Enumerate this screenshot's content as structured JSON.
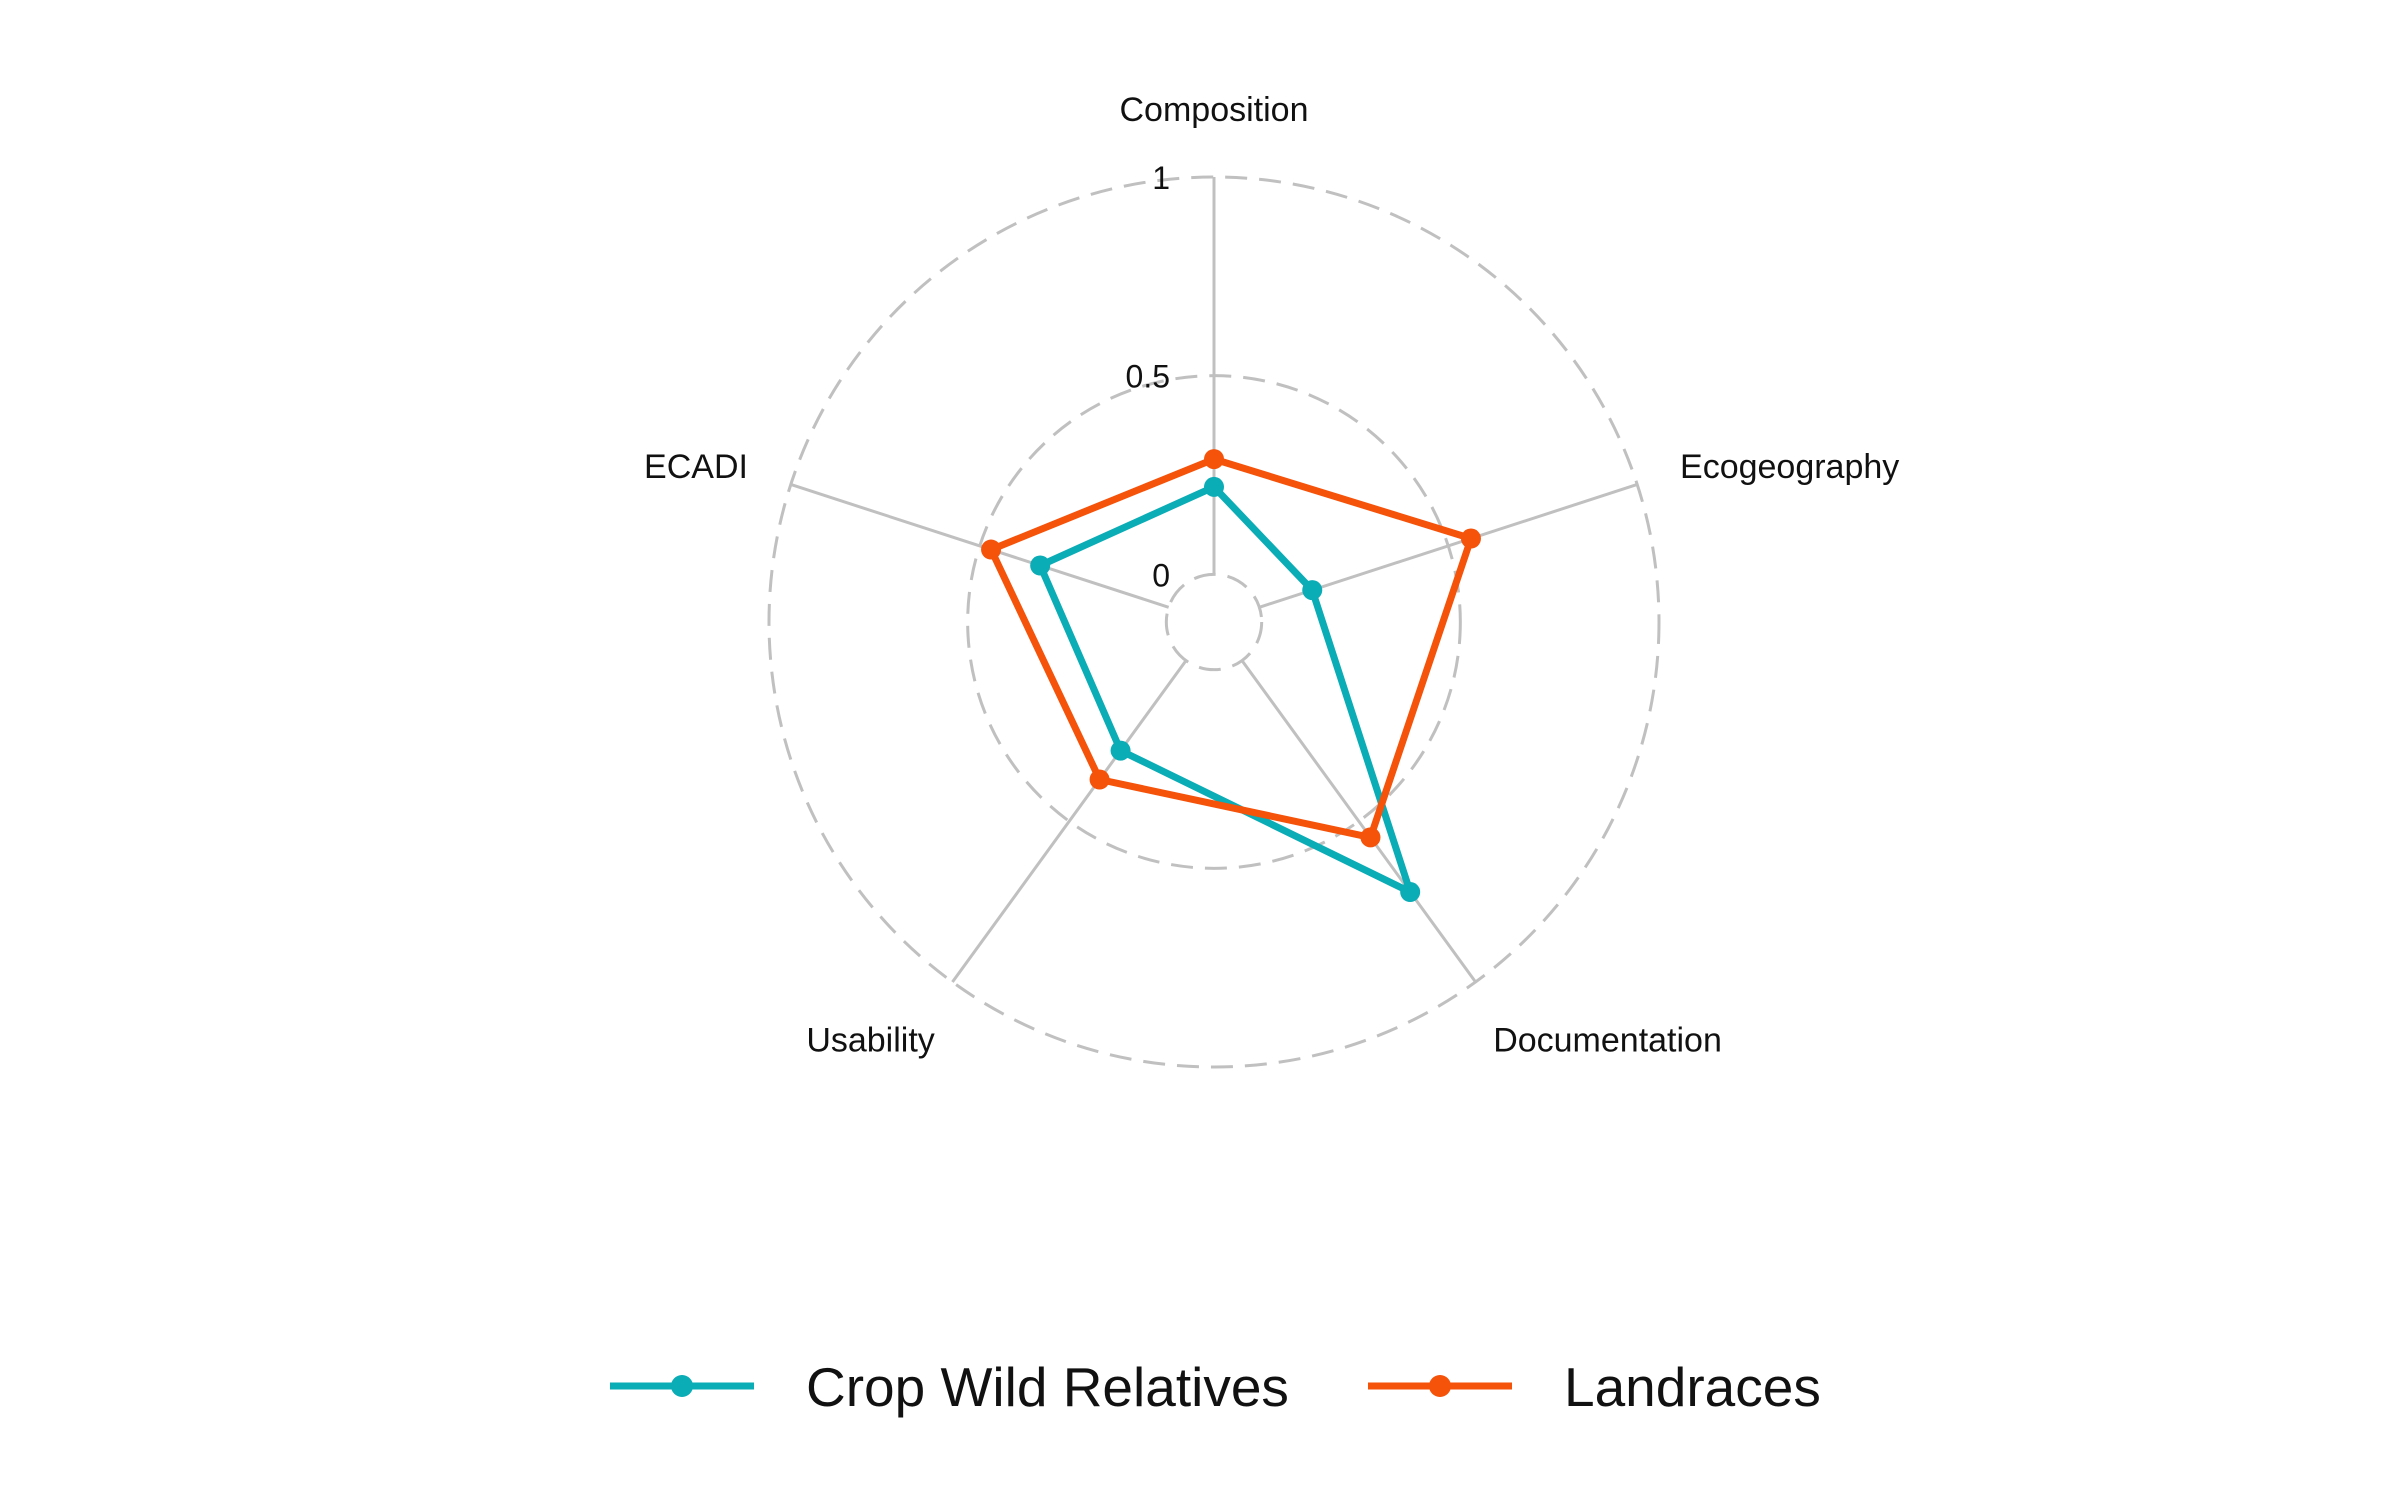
{
  "chart_data": {
    "type": "radar",
    "axes": [
      "Composition",
      "Ecogeography",
      "Documentation",
      "Usability",
      "ECADI"
    ],
    "ticks": [
      {
        "value": 0,
        "label": "0"
      },
      {
        "value": 0.5,
        "label": "0.5"
      },
      {
        "value": 1,
        "label": "1"
      }
    ],
    "rlim": [
      -0.12,
      1
    ],
    "grid": true,
    "legend_position": "bottom",
    "series": [
      {
        "name": "Crop Wild Relatives",
        "color": "#0aacb6",
        "values": [
          0.22,
          0.14,
          0.72,
          0.28,
          0.34
        ]
      },
      {
        "name": "Landraces",
        "color": "#f5520a",
        "values": [
          0.29,
          0.56,
          0.55,
          0.37,
          0.47
        ]
      }
    ]
  }
}
